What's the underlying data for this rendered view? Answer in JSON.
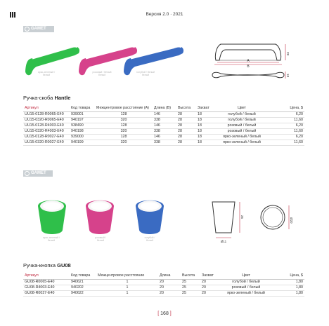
{
  "header": {
    "title": "Версия 2.0 · 2021"
  },
  "brand": {
    "name": "GAMET"
  },
  "hantle": {
    "title_prefix": "Ручка-скоба ",
    "title_name": "Hantle",
    "captions": [
      [
        "ярко-зеленый /",
        "белый"
      ],
      [
        "розовый / белый",
        "белый"
      ],
      [
        "голубой / белый",
        "белый"
      ]
    ],
    "colors": {
      "green": "#2fbf4a",
      "pink": "#d6428b",
      "blue": "#3a6bc2"
    },
    "drawing": {
      "label_a": "A",
      "label_b": "B",
      "dim_h": "28",
      "dim_d": "18"
    },
    "columns": [
      "Артикул",
      "Код товара",
      "Межцентровое расстояние (A)",
      "Длина (B)",
      "Высота",
      "Захват",
      "Цвет",
      "Цена, $"
    ],
    "rows": [
      [
        "UU15-0128-R0065-E40",
        "939001",
        "128",
        "146",
        "28",
        "18",
        "голубой / белый",
        "6,20"
      ],
      [
        "UU15-0320-R0065-E40",
        "940197",
        "320",
        "338",
        "28",
        "18",
        "голубой / белый",
        "11,60"
      ],
      [
        "UU15-0128-R4003-E40",
        "938490",
        "128",
        "146",
        "28",
        "18",
        "розовый / белый",
        "6,20"
      ],
      [
        "UU15-0320-R4003-E40",
        "940198",
        "320",
        "338",
        "28",
        "18",
        "розовый / белый",
        "11,60"
      ],
      [
        "UU15-0128-R0027-E40",
        "939000",
        "128",
        "146",
        "28",
        "18",
        "ярко-зеленый / белый",
        "6,20"
      ],
      [
        "UU15-0320-R0027-E40",
        "940199",
        "320",
        "338",
        "28",
        "18",
        "ярко-зеленый / белый",
        "11,60"
      ]
    ]
  },
  "gu08": {
    "title_prefix": "Ручка-кнопка ",
    "title_name": "GU08",
    "captions": [
      [
        "ярко-зеленый /",
        "белый"
      ],
      [
        "розовый /",
        "белый"
      ],
      [
        "голубой /",
        "белый"
      ]
    ],
    "drawing": {
      "dim_h": "25",
      "dim_d": "Ø20",
      "dim_base": "Ø11"
    },
    "columns": [
      "Артикул",
      "Код товара",
      "Межцентровое расстояние",
      "Длина",
      "Высота",
      "Захват",
      "Цвет",
      "Цена, $"
    ],
    "rows": [
      [
        "GU08-R0065-E40",
        "940621",
        "1",
        "20",
        "25",
        "20",
        "голубой / белый",
        "1,80"
      ],
      [
        "GU08-R4003-E40",
        "940202",
        "1",
        "20",
        "25",
        "20",
        "розовый / белый",
        "1,80"
      ],
      [
        "GU08-R0027-E40",
        "940622",
        "1",
        "20",
        "25",
        "20",
        "ярко-зеленый / белый",
        "1,80"
      ]
    ]
  },
  "page": {
    "number": "168"
  }
}
